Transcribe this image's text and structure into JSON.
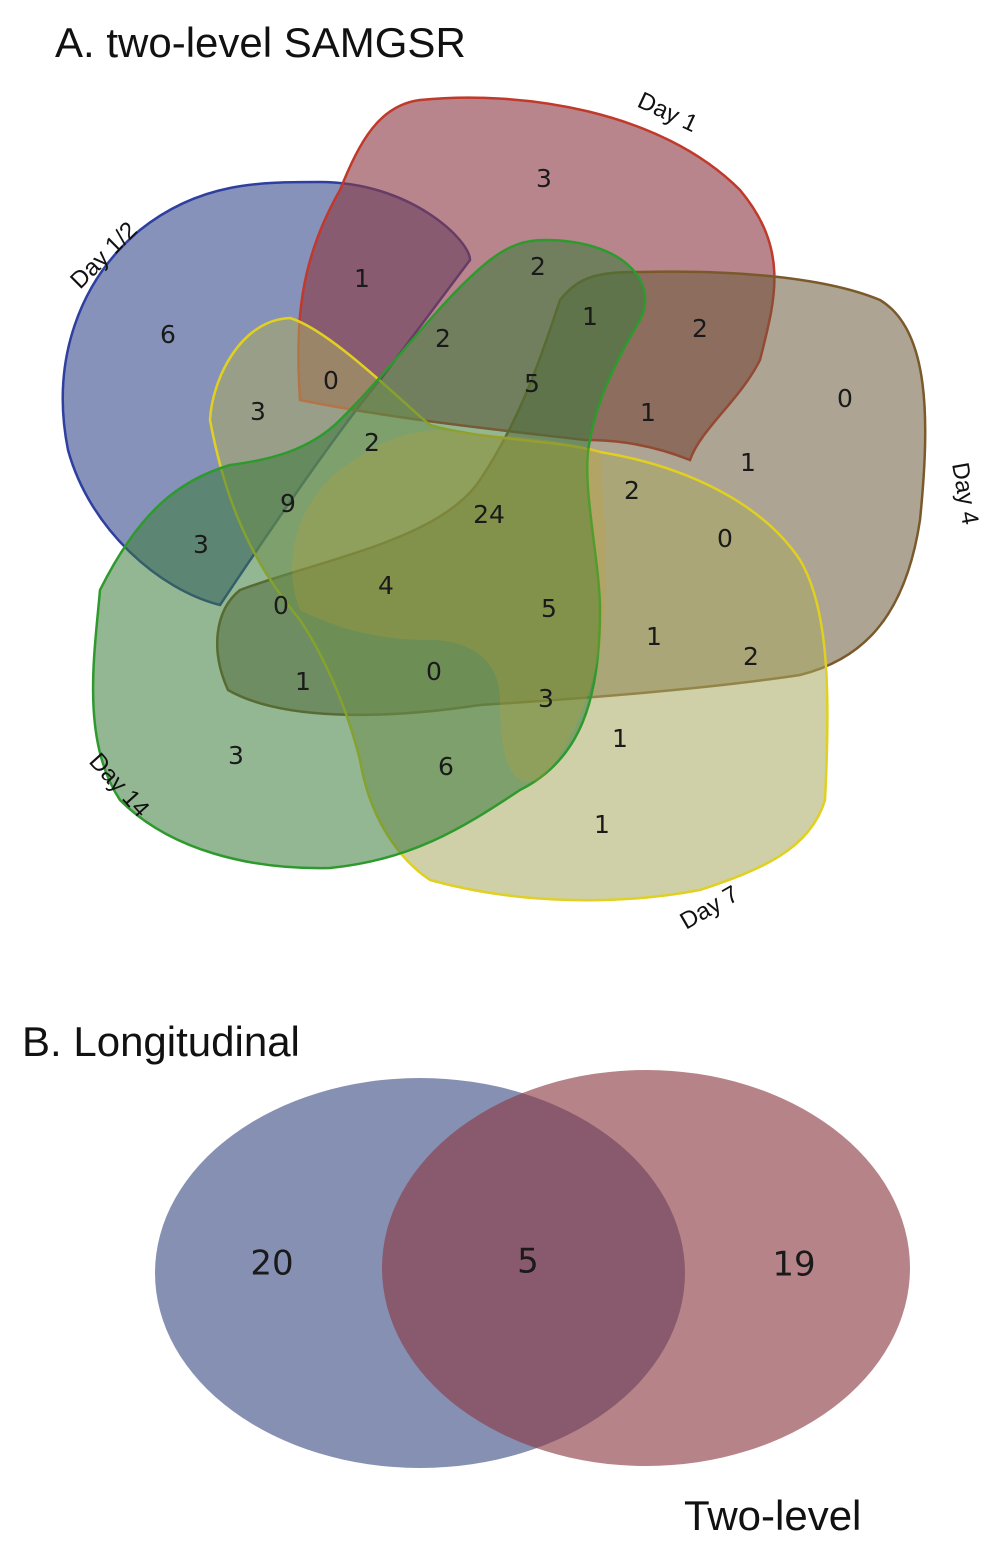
{
  "panel_a": {
    "title": "A. two-level SAMGSR",
    "sets": [
      {
        "key": "day12",
        "label": "Day 1/2",
        "fill": "#3d4f8f",
        "stroke": "#2d3fa0"
      },
      {
        "key": "day1",
        "label": "Day 1",
        "fill": "#8b3a44",
        "stroke": "#c0392b"
      },
      {
        "key": "day4",
        "label": "Day 4",
        "fill": "#6b5a3a",
        "stroke": "#7a5a2a"
      },
      {
        "key": "day7",
        "label": "Day 7",
        "fill": "#a8a860",
        "stroke": "#e0d020"
      },
      {
        "key": "day14",
        "label": "Day 14",
        "fill": "#3a7a3a",
        "stroke": "#2e9a2e"
      }
    ],
    "region_counts": [
      "3",
      "1",
      "6",
      "2",
      "2",
      "1",
      "2",
      "0",
      "3",
      "5",
      "1",
      "0",
      "1",
      "2",
      "24",
      "9",
      "2",
      "3",
      "0",
      "4",
      "5",
      "0",
      "1",
      "2",
      "1",
      "0",
      "3",
      "1",
      "3",
      "6",
      "1"
    ]
  },
  "panel_b": {
    "title": "B. Longitudinal",
    "label_right": "Two-level",
    "left_color": "#3f4f86",
    "right_color": "#8b3a44",
    "counts": {
      "left_only": "20",
      "both": "5",
      "right_only": "19"
    }
  }
}
